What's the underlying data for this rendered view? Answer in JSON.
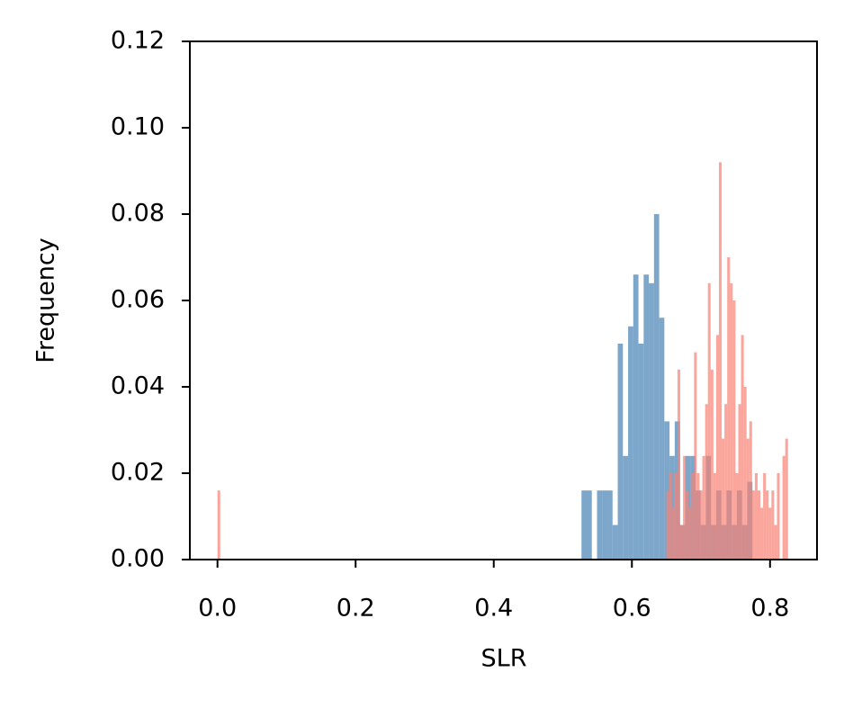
{
  "chart_data": {
    "type": "histogram",
    "x_label": "SLR",
    "y_label": "Frequency",
    "xlim": [
      -0.04,
      0.868
    ],
    "ylim": [
      0,
      0.12
    ],
    "xticks": [
      {
        "value": 0,
        "label": "0.0"
      },
      {
        "value": 0.2,
        "label": "0.2"
      },
      {
        "value": 0.4,
        "label": "0.4"
      },
      {
        "value": 0.6,
        "label": "0.6"
      },
      {
        "value": 0.8,
        "label": "0.8"
      }
    ],
    "yticks": [
      {
        "value": 0,
        "label": "0.00"
      },
      {
        "value": 0.02,
        "label": "0.02"
      },
      {
        "value": 0.04,
        "label": "0.04"
      },
      {
        "value": 0.06,
        "label": "0.06"
      },
      {
        "value": 0.08,
        "label": "0.08"
      },
      {
        "value": 0.1,
        "label": "0.10"
      },
      {
        "value": 0.12,
        "label": "0.12"
      }
    ],
    "grid": false,
    "series": [
      {
        "color": "#4682b4",
        "bins": [
          0.527,
          0.5345,
          0.542,
          0.5495,
          0.557,
          0.5645,
          0.572,
          0.5795,
          0.587,
          0.5945,
          0.602,
          0.6095,
          0.617,
          0.6245,
          0.632,
          0.6395,
          0.647,
          0.6545,
          0.662,
          0.6695,
          0.677,
          0.6845,
          0.692,
          0.6995,
          0.707,
          0.7145,
          0.722,
          0.7295,
          0.737,
          0.7445,
          0.752,
          0.7595,
          0.767,
          0.7745
        ],
        "values": [
          0.016,
          0.016,
          0,
          0.016,
          0.016,
          0.016,
          0.008,
          0.05,
          0.024,
          0.054,
          0.066,
          0.05,
          0.066,
          0.064,
          0.08,
          0.056,
          0.032,
          0.024,
          0.032,
          0.008,
          0.024,
          0.024,
          0.016,
          0.008,
          0.024,
          0.008,
          0.016,
          0.008,
          0.016,
          0.008,
          0.016,
          0.008,
          0.018
        ]
      },
      {
        "color": "#fa8072",
        "bins": [
          0,
          0.004,
          0.65,
          0.654,
          0.658,
          0.662,
          0.666,
          0.67,
          0.674,
          0.678,
          0.682,
          0.686,
          0.69,
          0.694,
          0.698,
          0.702,
          0.706,
          0.71,
          0.714,
          0.718,
          0.722,
          0.726,
          0.73,
          0.734,
          0.738,
          0.742,
          0.746,
          0.75,
          0.754,
          0.758,
          0.762,
          0.766,
          0.77,
          0.774,
          0.778,
          0.782,
          0.786,
          0.79,
          0.794,
          0.798,
          0.802,
          0.806,
          0.81,
          0.814,
          0.818,
          0.822,
          0.826
        ],
        "values": [
          0.016,
          0,
          0.016,
          0.02,
          0.012,
          0.02,
          0.044,
          0.008,
          0.024,
          0.016,
          0.012,
          0.02,
          0.048,
          0.02,
          0.016,
          0.024,
          0.036,
          0.064,
          0.044,
          0.02,
          0.052,
          0.092,
          0.028,
          0.036,
          0.07,
          0.064,
          0.06,
          0.02,
          0.036,
          0.052,
          0.04,
          0.028,
          0.032,
          0.016,
          0.02,
          0.016,
          0.012,
          0.02,
          0.016,
          0.012,
          0.016,
          0.008,
          0.02,
          0,
          0.024,
          0.028
        ]
      }
    ]
  }
}
